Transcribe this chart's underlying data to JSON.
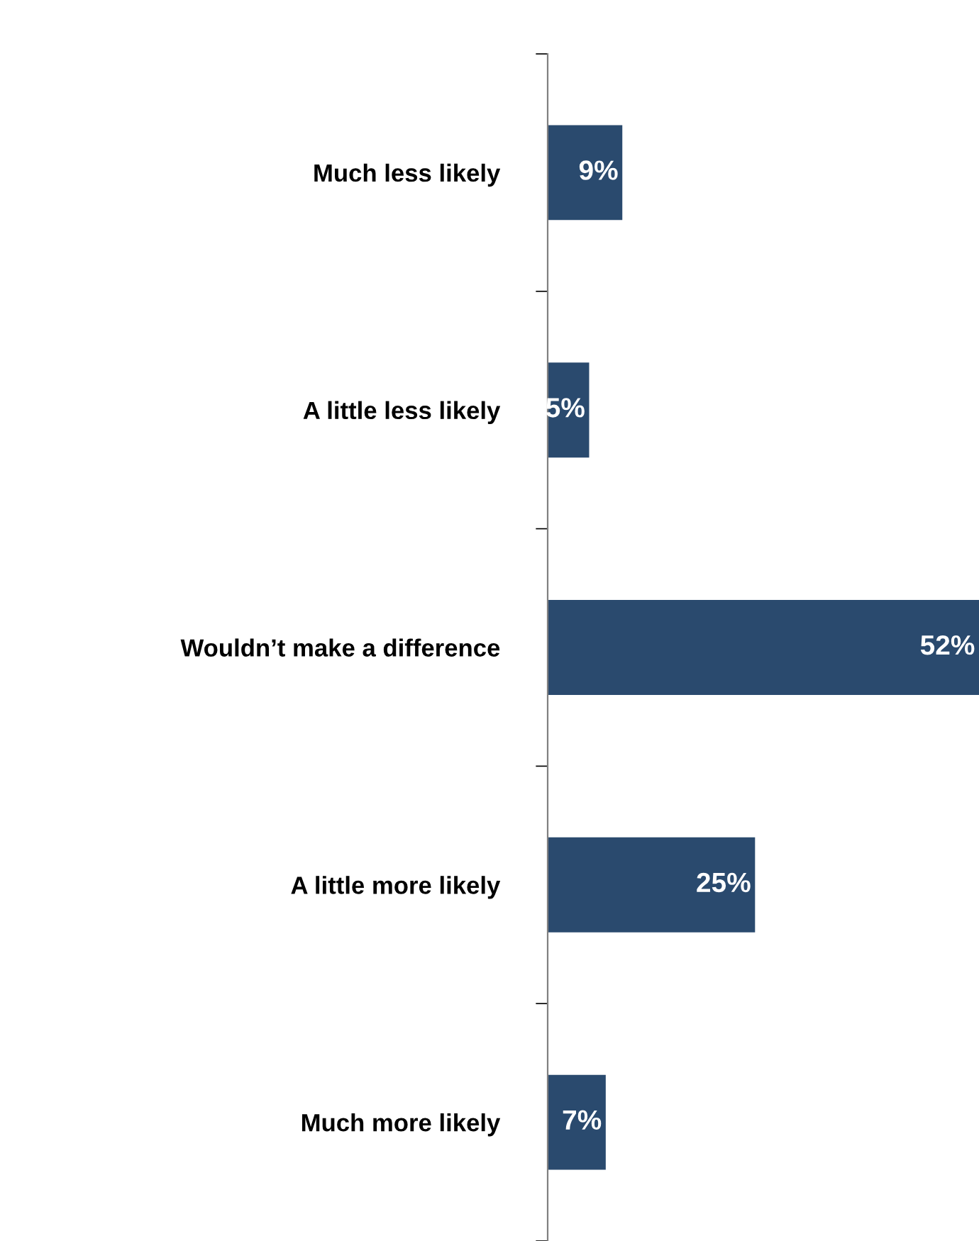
{
  "chart_data": {
    "type": "bar",
    "orientation": "horizontal",
    "categories": [
      "Much less likely",
      "A little less likely",
      "Wouldn’t make a difference",
      "A little more likely",
      "Much more likely"
    ],
    "values": [
      9,
      5,
      52,
      25,
      7
    ],
    "value_labels": [
      "9%",
      "5%",
      "52%",
      "25%",
      "7%"
    ],
    "color": "#2a4a6e",
    "grid": false,
    "legend": false
  }
}
